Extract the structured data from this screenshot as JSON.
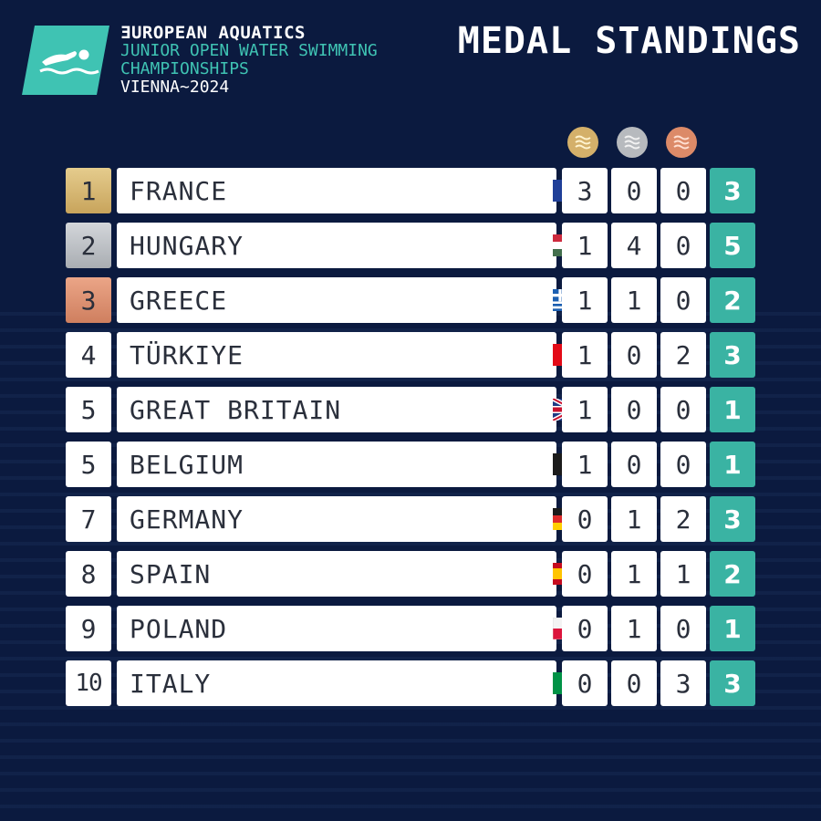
{
  "header": {
    "brand": "ƎUROPEAN AQUATICS",
    "event_line1": "JUNIOR OPEN WATER SWIMMING",
    "event_line2": "CHAMPIONSHIPS",
    "city": "VIENNA~2024",
    "title": "MEDAL STANDINGS"
  },
  "colors": {
    "background": "#0b1a3f",
    "accent_teal": "#3ab3a3",
    "gold": "#d4b06a",
    "silver": "#b7babe",
    "bronze": "#dc8a68"
  },
  "medal_icons": [
    "gold-medal-icon",
    "silver-medal-icon",
    "bronze-medal-icon"
  ],
  "rows": [
    {
      "rank": "1",
      "country": "FRANCE",
      "flag": "france-flag-icon",
      "gold": "3",
      "silver": "0",
      "bronze": "0",
      "total": "3"
    },
    {
      "rank": "2",
      "country": "HUNGARY",
      "flag": "hungary-flag-icon",
      "gold": "1",
      "silver": "4",
      "bronze": "0",
      "total": "5"
    },
    {
      "rank": "3",
      "country": "GREECE",
      "flag": "greece-flag-icon",
      "gold": "1",
      "silver": "1",
      "bronze": "0",
      "total": "2"
    },
    {
      "rank": "4",
      "country": "TÜRKIYE",
      "flag": "turkiye-flag-icon",
      "gold": "1",
      "silver": "0",
      "bronze": "2",
      "total": "3"
    },
    {
      "rank": "5",
      "country": "GREAT BRITAIN",
      "flag": "great-britain-flag-icon",
      "gold": "1",
      "silver": "0",
      "bronze": "0",
      "total": "1"
    },
    {
      "rank": "5",
      "country": "BELGIUM",
      "flag": "belgium-flag-icon",
      "gold": "1",
      "silver": "0",
      "bronze": "0",
      "total": "1"
    },
    {
      "rank": "7",
      "country": "GERMANY",
      "flag": "germany-flag-icon",
      "gold": "0",
      "silver": "1",
      "bronze": "2",
      "total": "3"
    },
    {
      "rank": "8",
      "country": "SPAIN",
      "flag": "spain-flag-icon",
      "gold": "0",
      "silver": "1",
      "bronze": "1",
      "total": "2"
    },
    {
      "rank": "9",
      "country": "POLAND",
      "flag": "poland-flag-icon",
      "gold": "0",
      "silver": "1",
      "bronze": "0",
      "total": "1"
    },
    {
      "rank": "10",
      "country": "ITALY",
      "flag": "italy-flag-icon",
      "gold": "0",
      "silver": "0",
      "bronze": "3",
      "total": "3"
    }
  ]
}
